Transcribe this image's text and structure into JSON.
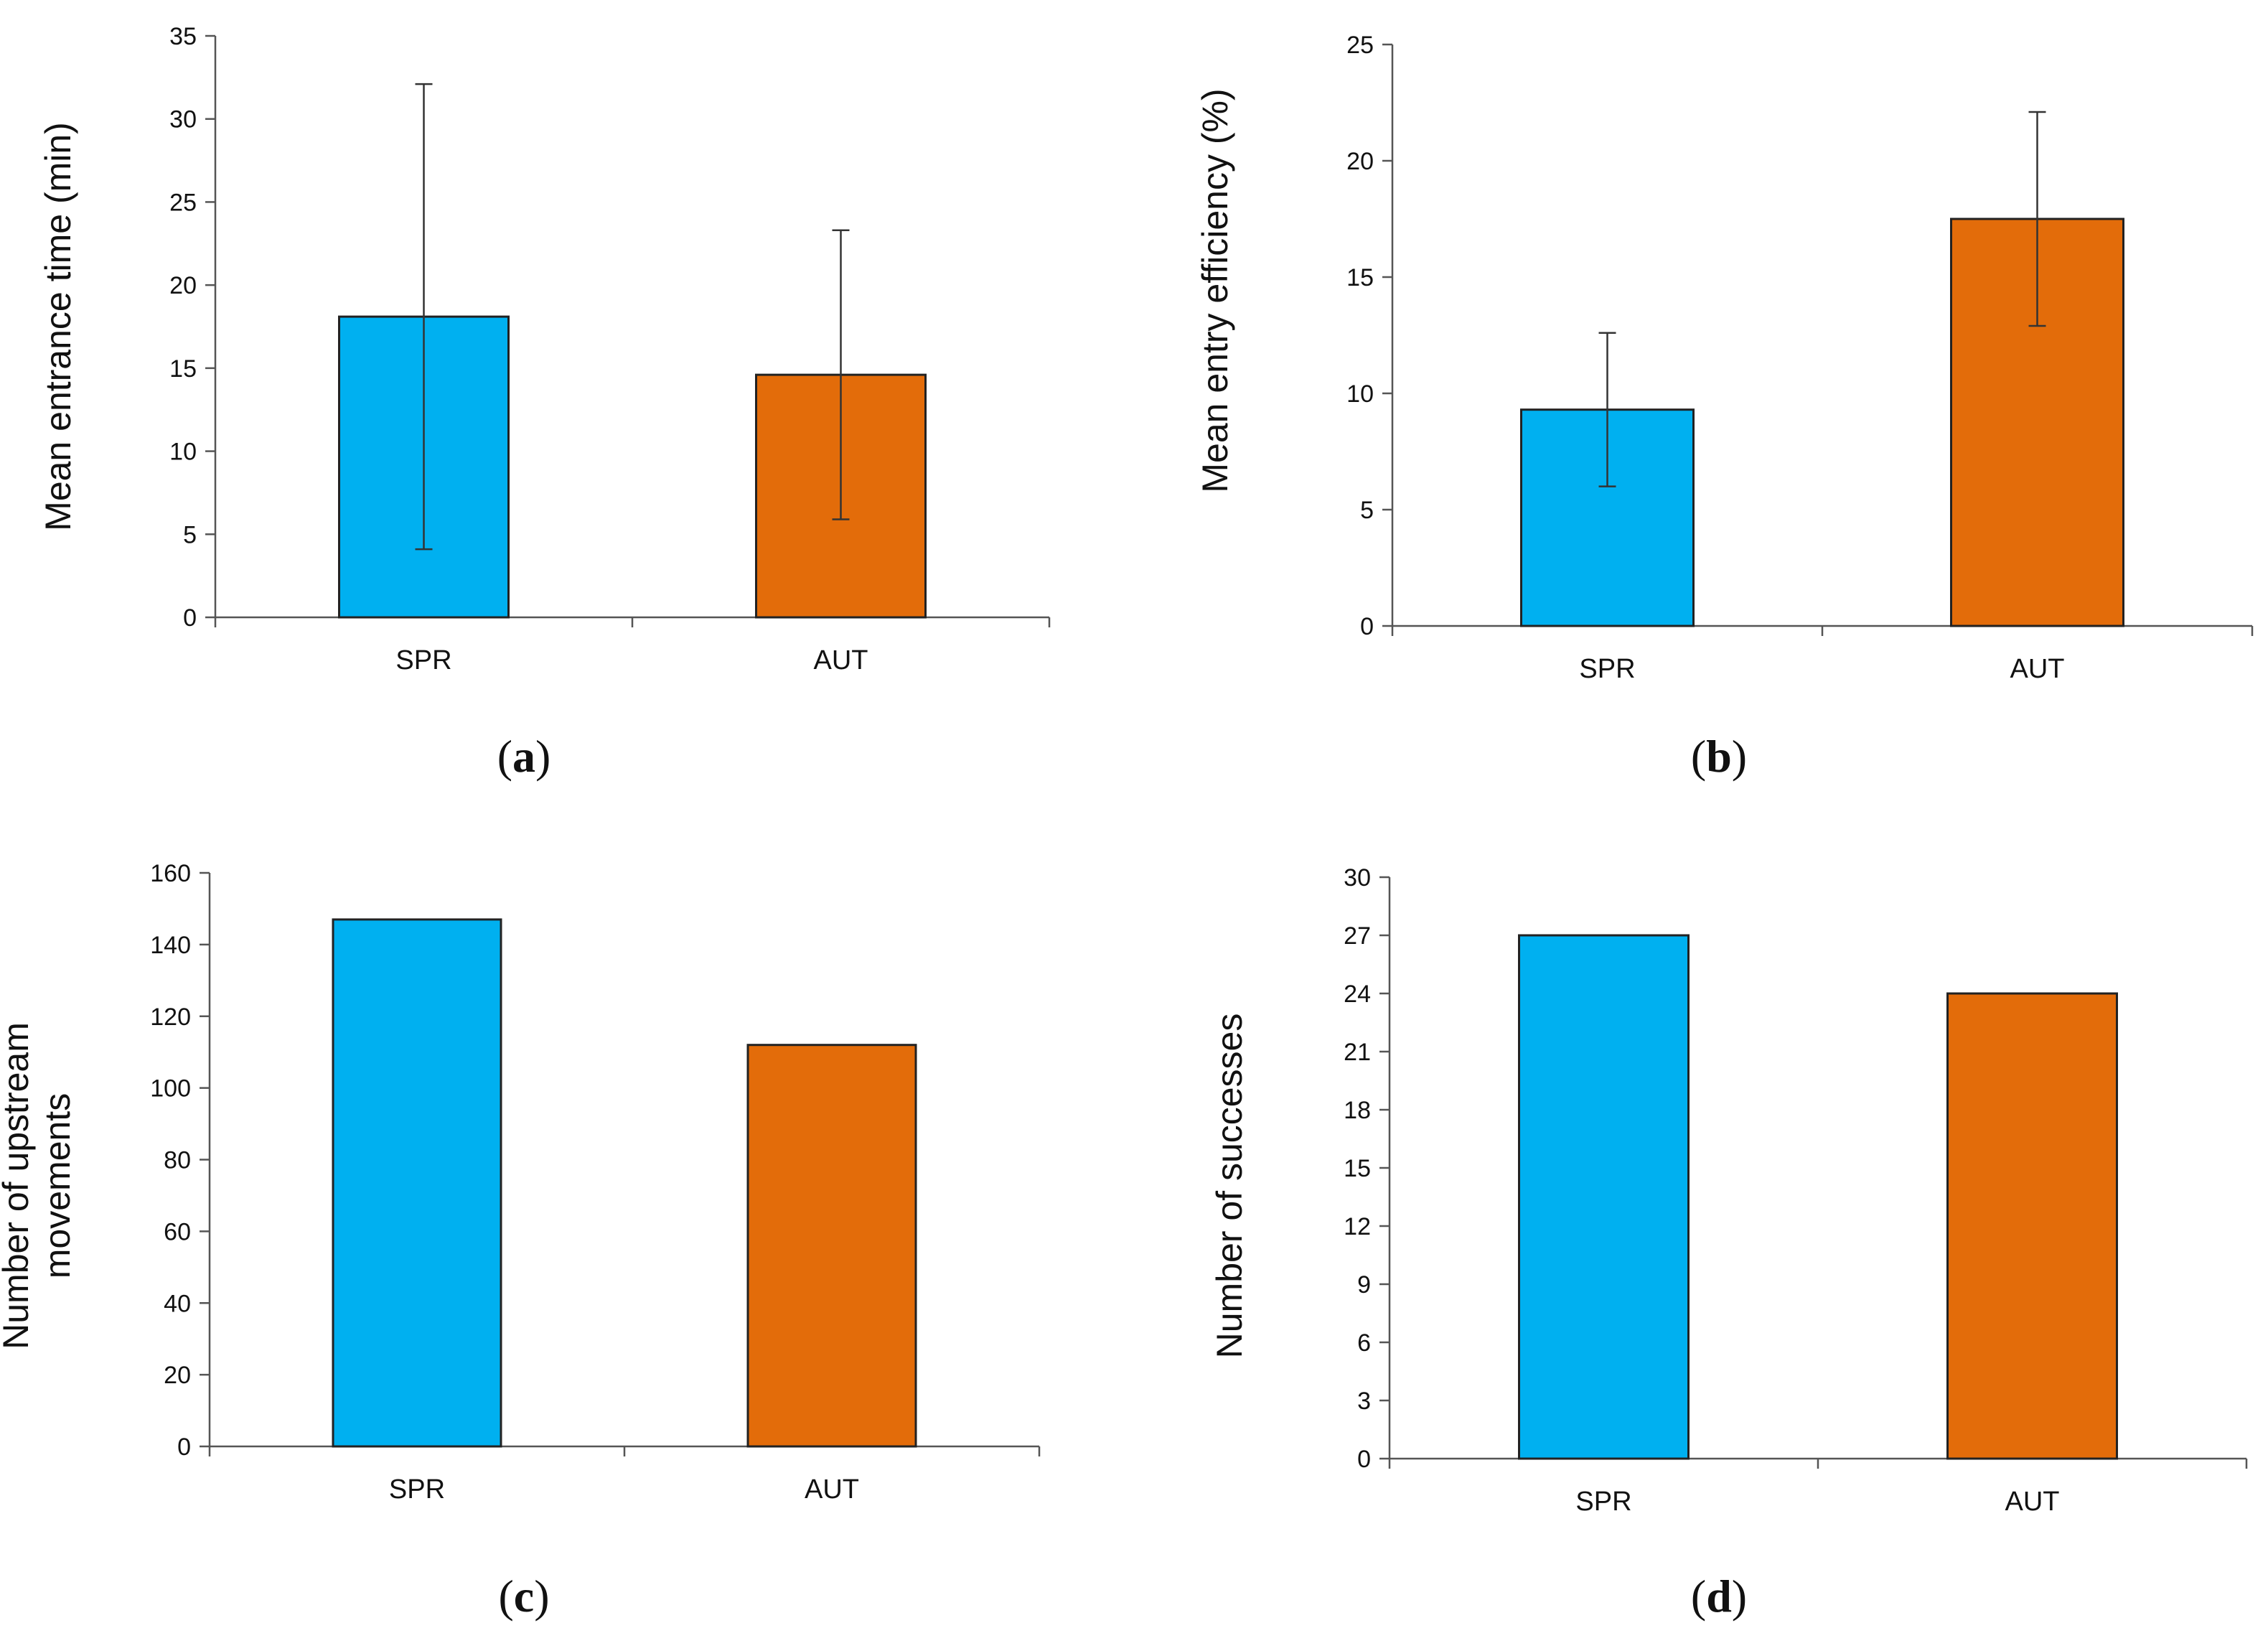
{
  "colors": {
    "SPR": "#00B0F0",
    "AUT": "#E36C0A"
  },
  "chart_data": [
    {
      "type": "bar",
      "panel": "(a)",
      "panel_letter": "a",
      "categories": [
        "SPR",
        "AUT"
      ],
      "values": [
        18.1,
        14.6
      ],
      "error": [
        14.0,
        8.7
      ],
      "ylabel": "Mean entrance time (min)",
      "ylabel_lines": [
        "Mean entrance time (min)"
      ],
      "ylim": [
        0,
        35
      ],
      "yticks": [
        0,
        5,
        10,
        15,
        20,
        25,
        30,
        35
      ],
      "grid": false
    },
    {
      "type": "bar",
      "panel": "(b)",
      "panel_letter": "b",
      "categories": [
        "SPR",
        "AUT"
      ],
      "values": [
        9.3,
        17.5
      ],
      "error": [
        3.3,
        4.6
      ],
      "ylabel": "Mean entry efficiency (%)",
      "ylabel_lines": [
        "Mean entry efficiency (%)"
      ],
      "ylim": [
        0,
        25
      ],
      "yticks": [
        0,
        5,
        10,
        15,
        20,
        25
      ],
      "grid": false
    },
    {
      "type": "bar",
      "panel": "(c)",
      "panel_letter": "c",
      "categories": [
        "SPR",
        "AUT"
      ],
      "values": [
        147,
        112
      ],
      "ylabel": "Number of upstream movements",
      "ylabel_lines": [
        "Number of upstream",
        "movements"
      ],
      "ylim": [
        0,
        160
      ],
      "yticks": [
        0,
        20,
        40,
        60,
        80,
        100,
        120,
        140,
        160
      ],
      "grid": false
    },
    {
      "type": "bar",
      "panel": "(d)",
      "panel_letter": "d",
      "categories": [
        "SPR",
        "AUT"
      ],
      "values": [
        27,
        24
      ],
      "ylabel": "Number of successes",
      "ylabel_lines": [
        "Number of successes"
      ],
      "ylim": [
        0,
        30
      ],
      "yticks": [
        0,
        3,
        6,
        9,
        12,
        15,
        18,
        21,
        24,
        27,
        30
      ],
      "grid": false
    }
  ]
}
